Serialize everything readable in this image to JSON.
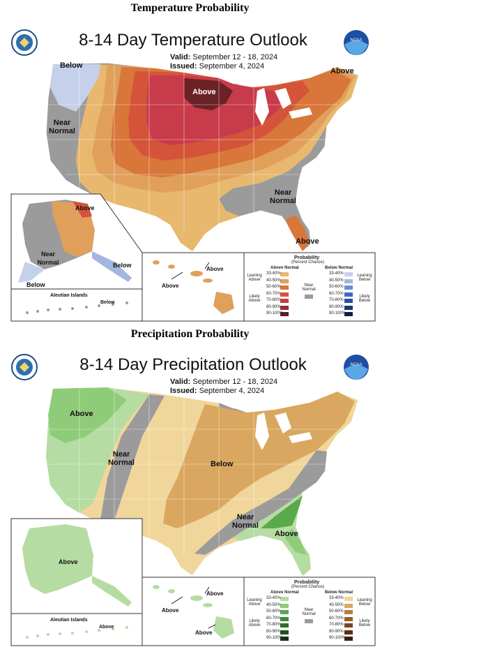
{
  "temperature": {
    "section_title": "Temperature Probability",
    "map_title": "8-14 Day Temperature Outlook",
    "valid_label": "Valid:",
    "valid_value": "September 12 - 18, 2024",
    "issued_label": "Issued:",
    "issued_value": "September 4, 2024",
    "labels": {
      "below_nw": "Below",
      "near_normal_w": "Near Normal",
      "above_mn": "Above",
      "above_ne": "Above",
      "near_normal_se": "Near Normal",
      "above_fl": "Above",
      "ak_above": "Above",
      "ak_near_normal": "Near Normal",
      "ak_below_se": "Below",
      "ak_below_sw": "Below",
      "aleutian_title": "Aleutian Islands",
      "aleutian_below": "Below",
      "hi_above_1": "Above",
      "hi_above_2": "Above"
    },
    "legend": {
      "title": "Probability",
      "subtitle": "(Percent Chance)",
      "above_header": "Above Normal",
      "below_header": "Below Normal",
      "leaning_above": "Leaning Above",
      "likely_above": "Likely Above",
      "near_normal": "Near Normal",
      "leaning_below": "Leaning Below",
      "likely_below": "Likely Below",
      "ranges": [
        "33-40%",
        "40-50%",
        "50-60%",
        "60-70%",
        "70-80%",
        "80-90%",
        "90-100%"
      ],
      "above_colors": [
        "#e8b86f",
        "#e0a05c",
        "#d9763a",
        "#d4543a",
        "#c83b4a",
        "#962d36",
        "#5c1f22"
      ],
      "below_colors": [
        "#c5d0ea",
        "#a4b6df",
        "#6c8ed0",
        "#3f6cbf",
        "#26509b",
        "#1a3a78",
        "#111f47"
      ],
      "near_color": "#9b9b9b"
    }
  },
  "precipitation": {
    "section_title": "Precipitation Probability",
    "map_title": "8-14 Day Precipitation Outlook",
    "valid_label": "Valid:",
    "valid_value": "September 12 - 18, 2024",
    "issued_label": "Issued:",
    "issued_value": "September 4, 2024",
    "labels": {
      "above_nw": "Above",
      "near_normal_w": "Near Normal",
      "below_central": "Below",
      "near_normal_se": "Near Normal",
      "above_se": "Above",
      "ak_above": "Above",
      "aleutian_title": "Aleutian Islands",
      "aleutian_above": "Above",
      "hi_above_1": "Above",
      "hi_above_2": "Above",
      "hi_above_3": "Above"
    },
    "legend": {
      "title": "Probability",
      "subtitle": "(Percent Chance)",
      "above_header": "Above Normal",
      "below_header": "Below Normal",
      "leaning_above": "Leaning Above",
      "likely_above": "Likely Above",
      "near_normal": "Near Normal",
      "leaning_below": "Leaning Below",
      "likely_below": "Likely Below",
      "ranges": [
        "33-40%",
        "40-50%",
        "50-60%",
        "60-70%",
        "70-80%",
        "80-90%",
        "90-100%"
      ],
      "above_colors": [
        "#b5dca3",
        "#8fcc7a",
        "#5aa94a",
        "#3c8c3c",
        "#2d6f2f",
        "#1f5220",
        "#133312"
      ],
      "below_colors": [
        "#f0d69a",
        "#d9a75f",
        "#b87c3f",
        "#9a5d2c",
        "#7c4420",
        "#5e3017",
        "#3d1f0d"
      ],
      "near_color": "#9b9b9b"
    }
  },
  "colors": {
    "temp_lean_above": "#e8b86f",
    "temp_above_40": "#e0a05c",
    "temp_above_50": "#d9763a",
    "temp_above_60": "#d4543a",
    "temp_above_70": "#c83b4a",
    "temp_above_80": "#6b2227",
    "temp_lean_below": "#c5d0ea",
    "near": "#9b9b9b",
    "precip_above_lean": "#b5dca3",
    "precip_above_40": "#8fcc7a",
    "precip_above_50": "#5aa94a",
    "precip_below_lean": "#f0d69a",
    "precip_below_40": "#d9a75f"
  }
}
